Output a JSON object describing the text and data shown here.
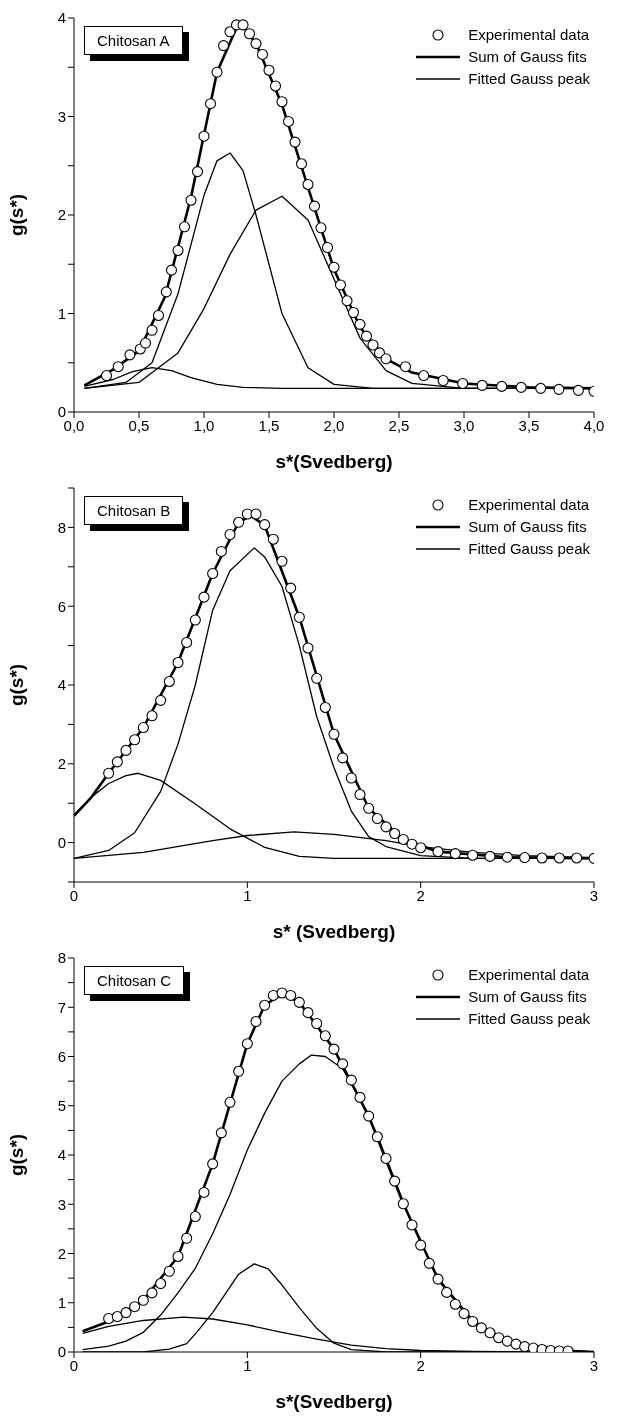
{
  "chart_data": [
    {
      "type": "line",
      "title": "Chitosan A",
      "xlabel": "s*(Svedberg)",
      "ylabel": "g(s*)",
      "legend": "top right",
      "xlim": [
        0,
        4
      ],
      "xticks": [
        {
          "value": 0,
          "label": "0,0"
        },
        {
          "value": 0.5,
          "label": "0,5"
        },
        {
          "value": 1,
          "label": "1,0"
        },
        {
          "value": 1.5,
          "label": "1,5"
        },
        {
          "value": 2,
          "label": "2,0"
        },
        {
          "value": 2.5,
          "label": "2,5"
        },
        {
          "value": 3,
          "label": "3,0"
        },
        {
          "value": 3.5,
          "label": "3,5"
        },
        {
          "value": 4,
          "label": "4,0"
        }
      ],
      "ylim": [
        0,
        4
      ],
      "yticks": [
        0,
        {
          "value": 0.5,
          "label": null
        },
        1,
        {
          "value": 1.5,
          "label": null
        },
        2,
        {
          "value": 2.5,
          "label": null
        },
        3,
        {
          "value": 3.5,
          "label": null
        },
        4
      ],
      "series": [
        {
          "type": "scatter",
          "marker": "circle",
          "name": "Experimental data",
          "color": "#000000",
          "x": [
            0.25,
            0.34,
            0.43,
            0.51,
            0.55,
            0.6,
            0.65,
            0.71,
            0.75,
            0.8,
            0.85,
            0.9,
            0.95,
            1.0,
            1.05,
            1.1,
            1.15,
            1.2,
            1.25,
            1.3,
            1.35,
            1.4,
            1.45,
            1.5,
            1.55,
            1.6,
            1.65,
            1.7,
            1.75,
            1.8,
            1.85,
            1.9,
            1.95,
            2.0,
            2.05,
            2.1,
            2.15,
            2.2,
            2.25,
            2.3,
            2.35,
            2.4,
            2.55,
            2.69,
            2.84,
            2.99,
            3.14,
            3.29,
            3.44,
            3.59,
            3.73,
            3.88,
            4.0
          ],
          "values": [
            0.37,
            0.46,
            0.58,
            0.64,
            0.7,
            0.83,
            0.98,
            1.22,
            1.44,
            1.64,
            1.88,
            2.15,
            2.44,
            2.8,
            3.13,
            3.45,
            3.72,
            3.86,
            3.93,
            3.93,
            3.84,
            3.74,
            3.63,
            3.47,
            3.31,
            3.15,
            2.95,
            2.74,
            2.52,
            2.31,
            2.09,
            1.87,
            1.67,
            1.47,
            1.29,
            1.13,
            1.01,
            0.89,
            0.77,
            0.68,
            0.6,
            0.54,
            0.46,
            0.37,
            0.32,
            0.29,
            0.27,
            0.26,
            0.25,
            0.24,
            0.23,
            0.22,
            0.21
          ]
        },
        {
          "name": "Sum of Gauss fits",
          "color": "#000000",
          "x": [
            0.08,
            0.3,
            0.5,
            0.7,
            0.9,
            1.1,
            1.25,
            1.3,
            1.4,
            1.6,
            1.8,
            2.0,
            2.2,
            2.4,
            2.6,
            3.0,
            3.5,
            4.0
          ],
          "values": [
            0.27,
            0.43,
            0.62,
            1.17,
            2.18,
            3.45,
            3.9,
            3.92,
            3.74,
            3.12,
            2.28,
            1.45,
            0.86,
            0.54,
            0.4,
            0.29,
            0.25,
            0.24
          ]
        },
        {
          "name": "Fitted Gauss peak",
          "color": "#000000",
          "x": [
            0.08,
            0.3,
            0.45,
            0.6,
            0.75,
            0.9,
            1.1,
            1.3,
            1.6,
            4.0
          ],
          "values": [
            0.26,
            0.33,
            0.41,
            0.45,
            0.42,
            0.35,
            0.28,
            0.25,
            0.24,
            0.24
          ]
        },
        {
          "color": "#000000",
          "x": [
            0.08,
            0.4,
            0.6,
            0.8,
            1.0,
            1.1,
            1.2,
            1.3,
            1.4,
            1.6,
            1.8,
            2.0,
            2.3,
            4.0
          ],
          "values": [
            0.24,
            0.3,
            0.5,
            1.2,
            2.2,
            2.55,
            2.63,
            2.45,
            2.0,
            1.0,
            0.45,
            0.28,
            0.24,
            0.24
          ]
        },
        {
          "color": "#000000",
          "x": [
            0.08,
            0.5,
            0.8,
            1.0,
            1.2,
            1.4,
            1.6,
            1.8,
            2.0,
            2.2,
            2.4,
            2.6,
            3.0,
            4.0
          ],
          "values": [
            0.24,
            0.3,
            0.6,
            1.05,
            1.6,
            2.05,
            2.19,
            1.95,
            1.35,
            0.75,
            0.42,
            0.29,
            0.24,
            0.24
          ]
        }
      ]
    },
    {
      "type": "line",
      "title": "Chitosan B",
      "xlabel": "s* (Svedberg)",
      "ylabel": "g(s*)",
      "legend": "top right",
      "xlim": [
        0,
        3
      ],
      "xticks": [
        0,
        1,
        2,
        3
      ],
      "ylim": [
        -1,
        9
      ],
      "yticks": [
        {
          "value": -1,
          "label": null
        },
        0,
        {
          "value": 1,
          "label": null
        },
        2,
        {
          "value": 3,
          "label": null
        },
        4,
        {
          "value": 5,
          "label": null
        },
        6,
        {
          "value": 7,
          "label": null
        },
        8,
        {
          "value": 9,
          "label": null
        }
      ],
      "series": [
        {
          "type": "scatter",
          "marker": "circle",
          "name": "Experimental data",
          "color": "#000000",
          "x": [
            0.2,
            0.25,
            0.3,
            0.35,
            0.4,
            0.45,
            0.5,
            0.55,
            0.6,
            0.65,
            0.7,
            0.75,
            0.8,
            0.85,
            0.9,
            0.95,
            1.0,
            1.05,
            1.1,
            1.15,
            1.2,
            1.25,
            1.3,
            1.35,
            1.4,
            1.45,
            1.5,
            1.55,
            1.6,
            1.65,
            1.7,
            1.75,
            1.8,
            1.85,
            1.9,
            1.95,
            2.0,
            2.1,
            2.2,
            2.3,
            2.4,
            2.5,
            2.6,
            2.7,
            2.8,
            2.9,
            3.0
          ],
          "values": [
            1.76,
            2.05,
            2.34,
            2.61,
            2.92,
            3.22,
            3.61,
            4.09,
            4.57,
            5.08,
            5.65,
            6.23,
            6.83,
            7.39,
            7.82,
            8.13,
            8.34,
            8.34,
            8.07,
            7.7,
            7.14,
            6.46,
            5.72,
            4.94,
            4.17,
            3.43,
            2.75,
            2.15,
            1.64,
            1.22,
            0.87,
            0.61,
            0.4,
            0.23,
            0.08,
            -0.04,
            -0.13,
            -0.23,
            -0.28,
            -0.32,
            -0.35,
            -0.37,
            -0.38,
            -0.39,
            -0.39,
            -0.39,
            -0.4
          ]
        },
        {
          "name": "Sum of Gauss fits",
          "color": "#000000",
          "x": [
            0,
            0.1,
            0.2,
            0.4,
            0.6,
            0.8,
            0.95,
            1.02,
            1.1,
            1.3,
            1.5,
            1.7,
            1.9,
            2.1,
            2.5,
            3.0
          ],
          "values": [
            0.68,
            1.15,
            1.76,
            2.92,
            4.57,
            6.83,
            8.13,
            8.3,
            8.05,
            5.72,
            2.75,
            0.87,
            0.08,
            -0.23,
            -0.37,
            -0.4
          ]
        },
        {
          "name": "Fitted Gauss peak",
          "color": "#000000",
          "x": [
            0,
            0.1,
            0.2,
            0.3,
            0.37,
            0.5,
            0.7,
            0.9,
            1.1,
            1.3,
            1.5,
            3.0
          ],
          "values": [
            0.7,
            1.15,
            1.5,
            1.7,
            1.76,
            1.58,
            0.98,
            0.35,
            -0.12,
            -0.35,
            -0.4,
            -0.4
          ]
        },
        {
          "color": "#000000",
          "x": [
            0,
            0.2,
            0.35,
            0.5,
            0.6,
            0.7,
            0.8,
            0.9,
            1.04,
            1.1,
            1.2,
            1.3,
            1.4,
            1.5,
            1.6,
            1.7,
            1.8,
            2.0,
            2.3,
            3.0
          ],
          "values": [
            -0.4,
            -0.2,
            0.25,
            1.3,
            2.5,
            4.0,
            5.9,
            6.9,
            7.48,
            7.25,
            6.5,
            5.0,
            3.2,
            1.9,
            0.8,
            0.15,
            -0.1,
            -0.33,
            -0.4,
            -0.4
          ]
        },
        {
          "color": "#000000",
          "x": [
            0,
            0.4,
            0.8,
            1.0,
            1.27,
            1.5,
            1.8,
            2.0,
            2.3,
            2.6,
            3.0
          ],
          "values": [
            -0.4,
            -0.25,
            0.05,
            0.18,
            0.27,
            0.21,
            0.05,
            -0.1,
            -0.25,
            -0.33,
            -0.38
          ]
        }
      ]
    },
    {
      "type": "line",
      "title": "Chitosan C",
      "xlabel": "s*(Svedberg)",
      "ylabel": "g(s*)",
      "legend": "top right",
      "xlim": [
        0,
        3
      ],
      "xticks": [
        0,
        1,
        2,
        3
      ],
      "ylim": [
        0,
        8
      ],
      "yticks": [
        0,
        {
          "value": 0.5,
          "label": null
        },
        1,
        {
          "value": 1.5,
          "label": null
        },
        2,
        {
          "value": 2.5,
          "label": null
        },
        3,
        {
          "value": 3.5,
          "label": null
        },
        4,
        {
          "value": 4.5,
          "label": null
        },
        5,
        {
          "value": 5.5,
          "label": null
        },
        6,
        {
          "value": 6.5,
          "label": null
        },
        7,
        {
          "value": 7.5,
          "label": null
        },
        8
      ],
      "series": [
        {
          "type": "scatter",
          "marker": "circle",
          "name": "Experimental data",
          "color": "#000000",
          "x": [
            0.2,
            0.25,
            0.3,
            0.35,
            0.4,
            0.45,
            0.5,
            0.55,
            0.6,
            0.65,
            0.7,
            0.75,
            0.8,
            0.85,
            0.9,
            0.95,
            1.0,
            1.05,
            1.1,
            1.15,
            1.2,
            1.25,
            1.3,
            1.35,
            1.4,
            1.45,
            1.5,
            1.55,
            1.6,
            1.65,
            1.7,
            1.75,
            1.8,
            1.85,
            1.9,
            1.95,
            2.0,
            2.05,
            2.1,
            2.15,
            2.2,
            2.25,
            2.3,
            2.35,
            2.4,
            2.45,
            2.5,
            2.55,
            2.6,
            2.65,
            2.7,
            2.75,
            2.8,
            2.85
          ],
          "values": [
            0.68,
            0.72,
            0.8,
            0.92,
            1.05,
            1.2,
            1.39,
            1.64,
            1.94,
            2.31,
            2.75,
            3.24,
            3.82,
            4.45,
            5.07,
            5.7,
            6.26,
            6.71,
            7.04,
            7.24,
            7.29,
            7.24,
            7.1,
            6.89,
            6.67,
            6.42,
            6.15,
            5.85,
            5.52,
            5.17,
            4.79,
            4.37,
            3.93,
            3.47,
            3.01,
            2.58,
            2.17,
            1.8,
            1.48,
            1.21,
            0.97,
            0.78,
            0.62,
            0.49,
            0.39,
            0.29,
            0.22,
            0.16,
            0.11,
            0.08,
            0.05,
            0.03,
            0.02,
            0.02
          ]
        },
        {
          "name": "Sum of Gauss fits",
          "color": "#000000",
          "x": [
            0.05,
            0.2,
            0.4,
            0.6,
            0.8,
            1.0,
            1.1,
            1.2,
            1.3,
            1.5,
            1.7,
            1.9,
            2.1,
            2.3,
            2.5,
            2.7,
            3.0
          ],
          "values": [
            0.42,
            0.62,
            1.05,
            1.94,
            3.82,
            6.26,
            7.04,
            7.27,
            7.1,
            6.15,
            4.79,
            3.01,
            1.48,
            0.62,
            0.22,
            0.05,
            0
          ]
        },
        {
          "name": "Fitted Gauss peak",
          "color": "#000000",
          "x": [
            0.05,
            0.2,
            0.4,
            0.63,
            0.8,
            1.0,
            1.2,
            1.4,
            1.6,
            1.8,
            2.0,
            2.3,
            3.0
          ],
          "values": [
            0.38,
            0.52,
            0.64,
            0.71,
            0.67,
            0.55,
            0.4,
            0.26,
            0.14,
            0.07,
            0.03,
            0.01,
            0
          ]
        },
        {
          "color": "#000000",
          "x": [
            0.05,
            0.4,
            0.55,
            0.65,
            0.71,
            0.8,
            0.95,
            1.04,
            1.12,
            1.2,
            1.3,
            1.4,
            1.5,
            1.6,
            1.8,
            3.0
          ],
          "values": [
            0,
            0,
            0.06,
            0.17,
            0.41,
            0.8,
            1.58,
            1.79,
            1.69,
            1.36,
            0.9,
            0.48,
            0.18,
            0.05,
            0,
            0
          ]
        },
        {
          "color": "#000000",
          "x": [
            0.05,
            0.2,
            0.3,
            0.4,
            0.5,
            0.6,
            0.7,
            0.8,
            0.9,
            1.0,
            1.1,
            1.2,
            1.3,
            1.37,
            1.45,
            1.55,
            1.65,
            1.75,
            1.85,
            1.95,
            2.1,
            2.3,
            2.5,
            2.7,
            3.0
          ],
          "values": [
            0.05,
            0.12,
            0.22,
            0.4,
            0.75,
            1.2,
            1.7,
            2.4,
            3.2,
            4.1,
            4.85,
            5.5,
            5.85,
            6.03,
            6.0,
            5.75,
            5.15,
            4.4,
            3.5,
            2.6,
            1.5,
            0.65,
            0.22,
            0.06,
            0
          ]
        }
      ]
    }
  ]
}
